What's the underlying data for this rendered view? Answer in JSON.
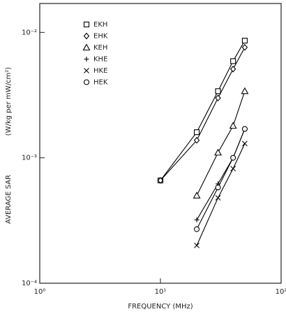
{
  "chart_data": {
    "type": "line",
    "ylabel": "AVERAGE SAR",
    "ylabel_units": "(W/kg per mW/cm²)",
    "xlabel": "FREQUENCY (MHz)",
    "log_x": true,
    "log_y": true,
    "xlim": [
      1,
      100
    ],
    "xticks": [
      {
        "value": 1,
        "label": "10⁰"
      },
      {
        "value": 10,
        "label": "10¹"
      },
      {
        "value": 100,
        "label": "10²"
      }
    ],
    "ylim": [
      0.0001,
      0.017
    ],
    "yticks": [
      {
        "value": 0.0001,
        "label": "10⁻⁴"
      },
      {
        "value": 0.001,
        "label": "10⁻³"
      },
      {
        "value": 0.01,
        "label": "10⁻²"
      }
    ],
    "legend": "upper left",
    "series": [
      {
        "name": "EKH",
        "color": "#000000",
        "marker": "square",
        "x": [
          10,
          20,
          30,
          40,
          50
        ],
        "values": [
          0.00066,
          0.0016,
          0.0034,
          0.0059,
          0.0086
        ]
      },
      {
        "name": "EHK",
        "color": "#000000",
        "marker": "diamond",
        "x": [
          10,
          20,
          30,
          40,
          50
        ],
        "values": [
          0.00066,
          0.00138,
          0.003,
          0.0051,
          0.0076
        ]
      },
      {
        "name": "KEH",
        "color": "#000000",
        "marker": "triangle",
        "x": [
          20,
          30,
          40,
          50
        ],
        "values": [
          0.0005,
          0.0011,
          0.0018,
          0.0034
        ]
      },
      {
        "name": "KHE",
        "color": "#000000",
        "marker": "plus",
        "x": [
          20,
          30,
          40,
          50
        ],
        "values": [
          0.00032,
          0.00062,
          0.001,
          0.0017
        ]
      },
      {
        "name": "HKE",
        "color": "#000000",
        "marker": "cross",
        "x": [
          20,
          30,
          40,
          50
        ],
        "values": [
          0.0002,
          0.00048,
          0.00082,
          0.0013
        ]
      },
      {
        "name": "HEK",
        "color": "#000000",
        "marker": "circle",
        "x": [
          20,
          30,
          40,
          50
        ],
        "values": [
          0.00027,
          0.00058,
          0.001,
          0.0017
        ]
      }
    ]
  }
}
